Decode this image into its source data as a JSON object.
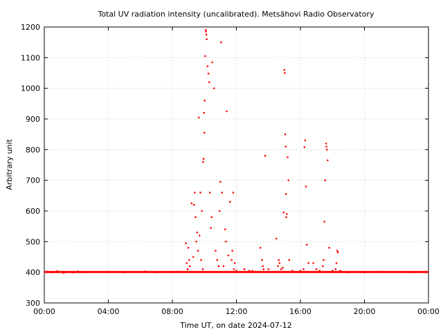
{
  "chart_data": {
    "type": "scatter",
    "title": "Total UV radiation intensity (uncalibrated). Metsähovi Radio Observatory",
    "xlabel": "Time UT, on date 2024-07-12",
    "ylabel": "Arbitrary unit",
    "xlim": [
      0,
      24
    ],
    "ylim": [
      300,
      1200
    ],
    "x_tick_values": [
      0,
      4,
      8,
      12,
      16,
      20,
      24
    ],
    "x_tick_labels": [
      "00:00",
      "04:00",
      "08:00",
      "12:00",
      "16:00",
      "20:00",
      "00:00"
    ],
    "y_tick_values": [
      300,
      400,
      500,
      600,
      700,
      800,
      900,
      1000,
      1100,
      1200
    ],
    "y_tick_labels": [
      "300",
      "400",
      "500",
      "600",
      "700",
      "800",
      "900",
      "1000",
      "1100",
      "1200"
    ],
    "grid": true,
    "point_color": "#ff0000",
    "baseline": {
      "x_start": 0,
      "x_end": 24,
      "value": 401
    },
    "series": [
      {
        "x": [
          0.2,
          0.5,
          0.8,
          1.2,
          1.5,
          1.8,
          2.1,
          2.4,
          3.0,
          4.0,
          5.0,
          6.0,
          6.3,
          7.0,
          7.8,
          8.3,
          8.85,
          8.9,
          8.95,
          9.0,
          9.05,
          9.1,
          9.2,
          9.3,
          9.35,
          9.4,
          9.45,
          9.5,
          9.55,
          9.6,
          9.65,
          9.7,
          9.75,
          9.8,
          9.85,
          9.9,
          9.92,
          9.95,
          9.98,
          10.0,
          10.02,
          10.05,
          10.08,
          10.1,
          10.12,
          10.15,
          10.2,
          10.25,
          10.3,
          10.35,
          10.4,
          10.45,
          10.5,
          10.6,
          10.7,
          10.8,
          10.9,
          10.95,
          11.0,
          11.05,
          11.1,
          11.2,
          11.3,
          11.35,
          11.4,
          11.5,
          11.6,
          11.7,
          11.75,
          11.8,
          11.85,
          11.9,
          12.0,
          12.5,
          12.8,
          13.0,
          13.5,
          13.6,
          13.65,
          13.7,
          13.8,
          14.0,
          14.5,
          14.6,
          14.65,
          14.7,
          14.8,
          14.9,
          14.95,
          15.0,
          15.02,
          15.05,
          15.08,
          15.1,
          15.12,
          15.15,
          15.2,
          15.25,
          15.3,
          15.5,
          16.0,
          16.2,
          16.25,
          16.3,
          16.35,
          16.4,
          16.5,
          16.8,
          17.0,
          17.2,
          17.4,
          17.45,
          17.5,
          17.55,
          17.6,
          17.62,
          17.65,
          17.7,
          17.8,
          18.0,
          18.2,
          18.25,
          18.3,
          18.35,
          18.5,
          19.0,
          19.2,
          19.5,
          20.0,
          21.0,
          22.0,
          23.0,
          23.8
        ],
        "y": [
          402,
          400,
          404,
          398,
          401,
          399,
          403,
          400,
          401,
          402,
          400,
          401,
          403,
          400,
          401,
          402,
          495,
          430,
          410,
          480,
          440,
          420,
          625,
          450,
          620,
          660,
          580,
          500,
          530,
          470,
          905,
          520,
          660,
          440,
          600,
          410,
          760,
          770,
          920,
          855,
          960,
          1105,
          1190,
          1185,
          1175,
          1160,
          1072,
          1048,
          1020,
          660,
          545,
          580,
          1085,
          1000,
          470,
          440,
          420,
          600,
          695,
          1150,
          660,
          420,
          540,
          500,
          925,
          455,
          630,
          440,
          470,
          660,
          410,
          430,
          405,
          410,
          405,
          405,
          480,
          440,
          420,
          410,
          780,
          410,
          510,
          420,
          440,
          430,
          410,
          415,
          595,
          1060,
          1050,
          850,
          810,
          655,
          580,
          590,
          775,
          700,
          440,
          405,
          405,
          410,
          808,
          830,
          680,
          490,
          430,
          430,
          410,
          405,
          420,
          440,
          565,
          700,
          820,
          810,
          800,
          765,
          480,
          405,
          410,
          430,
          470,
          465,
          405,
          400,
          402,
          401,
          400,
          402,
          401,
          400,
          401
        ]
      }
    ]
  }
}
